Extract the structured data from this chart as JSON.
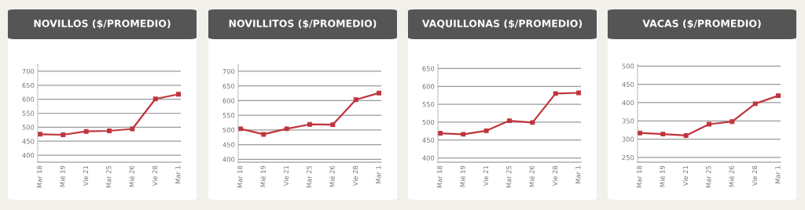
{
  "chart_data": [
    {
      "type": "line",
      "title": "NOVILLOS ($/PROMEDIO)",
      "categories": [
        "Mar 18",
        "Mié 19",
        "Vie 21",
        "Mar 25",
        "Mié 26",
        "Vie 28",
        "Mar 1"
      ],
      "series": [
        {
          "color": "#c0343c",
          "values": [
            475,
            473,
            485,
            487,
            494,
            601,
            618
          ]
        }
      ],
      "ylim": [
        375,
        725
      ],
      "yticks": [
        400,
        450,
        500,
        550,
        600,
        650,
        700
      ],
      "grid": "y",
      "marker": "square",
      "line_style": "solid"
    },
    {
      "type": "line",
      "title": "NOVILLITOS ($/PROMEDIO)",
      "categories": [
        "Mar 18",
        "Mié 19",
        "Vie 21",
        "Mar 25",
        "Mié 26",
        "Vie 28",
        "Mar 1"
      ],
      "series": [
        {
          "color": "#c0343c",
          "values": [
            504,
            485,
            504,
            519,
            518,
            603,
            626
          ]
        }
      ],
      "ylim": [
        390,
        724
      ],
      "yticks": [
        400,
        450,
        500,
        550,
        600,
        650,
        700
      ],
      "grid": "y",
      "marker": "square",
      "line_style": "solid"
    },
    {
      "type": "line",
      "title": "VAQUILLONAS ($/PROMEDIO)",
      "categories": [
        "Mar 18",
        "Mié 19",
        "Vie 21",
        "Mar 25",
        "Mié 26",
        "Vie 28",
        "Mar 1"
      ],
      "series": [
        {
          "color": "#c0343c",
          "values": [
            469,
            466,
            476,
            504,
            499,
            580,
            582
          ]
        }
      ],
      "ylim": [
        388,
        662
      ],
      "yticks": [
        400,
        450,
        500,
        550,
        600,
        650
      ],
      "grid": "y",
      "marker": "square",
      "line_style": "solid"
    },
    {
      "type": "line",
      "title": "VACAS ($/PROMEDIO)",
      "categories": [
        "Mar 18",
        "Mié 19",
        "Vie 21",
        "Mar 25",
        "Mié 26",
        "Vie 28",
        "Mar 1"
      ],
      "series": [
        {
          "color": "#c0343c",
          "values": [
            317,
            314,
            310,
            341,
            348,
            397,
            419
          ]
        }
      ],
      "ylim": [
        237,
        505
      ],
      "yticks": [
        250,
        300,
        350,
        400,
        450,
        500
      ],
      "grid": "y",
      "marker": "square",
      "line_style": "solid"
    }
  ]
}
